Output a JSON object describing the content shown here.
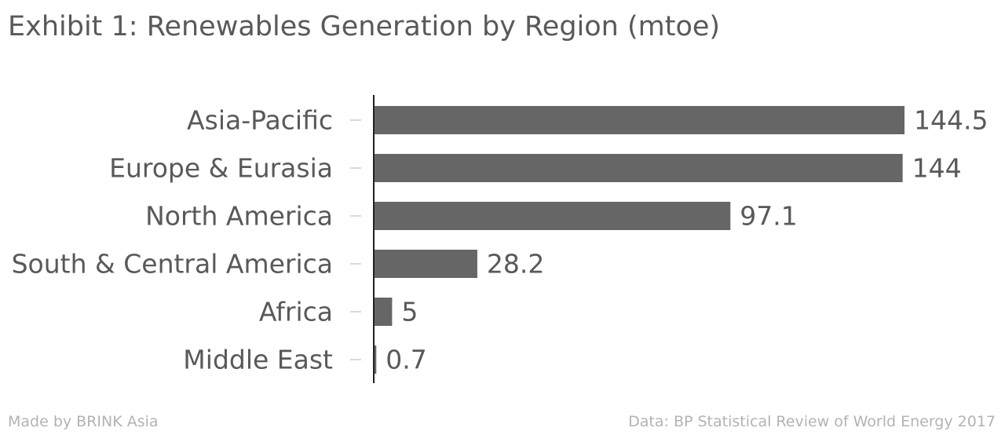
{
  "title": "Exhibit 1: Renewables Generation by Region (mtoe)",
  "footer": {
    "left": "Made by BRINK Asia",
    "right": "Data: BP Statistical Review of World Energy 2017"
  },
  "colors": {
    "bar": "#666666",
    "text": "#595959",
    "axis": "#222222",
    "tick": "#cccccc",
    "footer": "#b3b3b3"
  },
  "chart_data": {
    "type": "bar",
    "orientation": "horizontal",
    "categories": [
      "Asia-Pacific",
      "Europe & Eurasia",
      "North America",
      "South & Central America",
      "Africa",
      "Middle East"
    ],
    "values": [
      144.5,
      144,
      97.1,
      28.2,
      5,
      0.7
    ],
    "value_labels": [
      "144.5",
      "144",
      "97.1",
      "28.2",
      "5",
      "0.7"
    ],
    "title": "Exhibit 1: Renewables Generation by Region (mtoe)",
    "xlim": [
      0,
      144.5
    ],
    "grid": false,
    "legend": "none"
  }
}
